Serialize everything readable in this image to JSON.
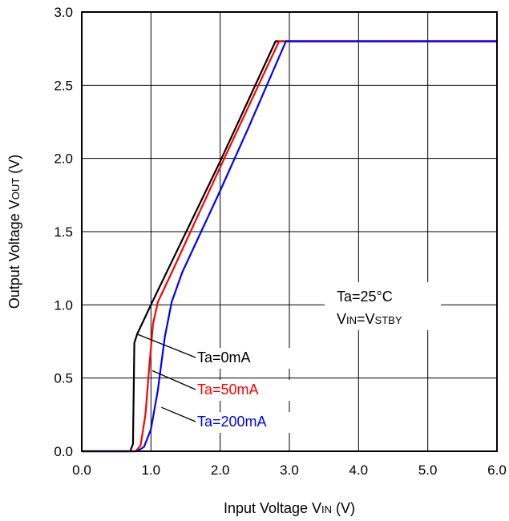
{
  "chart_data": {
    "type": "line",
    "title": "",
    "xlabel": {
      "main": "Input Voltage V",
      "sub": "IN",
      "suffix": " (V)"
    },
    "ylabel": {
      "main": "Output Voltage V",
      "sub": "OUT",
      "suffix": " (V)"
    },
    "xlim": [
      0,
      6
    ],
    "ylim": [
      0,
      3
    ],
    "x_ticks": [
      "0.0",
      "1.0",
      "2.0",
      "3.0",
      "4.0",
      "5.0",
      "6.0"
    ],
    "y_ticks": [
      "0.0",
      "0.5",
      "1.0",
      "1.5",
      "2.0",
      "2.5",
      "3.0"
    ],
    "grid": true,
    "series": [
      {
        "name": "Ta=0mA",
        "color": "#000000",
        "points": [
          [
            0,
            0
          ],
          [
            0.7,
            0
          ],
          [
            0.74,
            0.05
          ],
          [
            0.76,
            0.74
          ],
          [
            0.8,
            0.8
          ],
          [
            1.0,
            1.0
          ],
          [
            2.0,
            1.98
          ],
          [
            2.8,
            2.8
          ],
          [
            2.85,
            2.8
          ],
          [
            6.0,
            2.8
          ]
        ]
      },
      {
        "name": "Ta=50mA",
        "color": "#ff0000",
        "points": [
          [
            0,
            0
          ],
          [
            0.78,
            0
          ],
          [
            0.85,
            0.04
          ],
          [
            0.92,
            0.25
          ],
          [
            0.98,
            0.6
          ],
          [
            1.03,
            0.87
          ],
          [
            1.1,
            1.02
          ],
          [
            1.3,
            1.22
          ],
          [
            2.0,
            1.94
          ],
          [
            2.85,
            2.8
          ],
          [
            6.0,
            2.8
          ]
        ]
      },
      {
        "name": "Ta=200mA",
        "color": "#0000ff",
        "points": [
          [
            0,
            0
          ],
          [
            0.8,
            0
          ],
          [
            0.9,
            0.03
          ],
          [
            1.0,
            0.15
          ],
          [
            1.1,
            0.42
          ],
          [
            1.2,
            0.78
          ],
          [
            1.3,
            1.02
          ],
          [
            1.45,
            1.22
          ],
          [
            2.0,
            1.78
          ],
          [
            2.4,
            2.2
          ],
          [
            2.95,
            2.8
          ],
          [
            6.0,
            2.8
          ]
        ]
      }
    ],
    "condition_box": {
      "line1_prefix": "Ta=25",
      "line1_degree": "°C",
      "line2_main": "V",
      "line2_sub1": "IN",
      "line2_eq": "=V",
      "line2_sub2": "STBY"
    },
    "annotations": [
      {
        "text": "Ta=0mA",
        "color": "#000000",
        "target": [
          0.8,
          0.8
        ]
      },
      {
        "text": "Ta=50mA",
        "color": "#ff0000",
        "target": [
          1.02,
          0.55
        ]
      },
      {
        "text": "Ta=200mA",
        "color": "#0000ff",
        "target": [
          1.15,
          0.3
        ]
      }
    ]
  }
}
